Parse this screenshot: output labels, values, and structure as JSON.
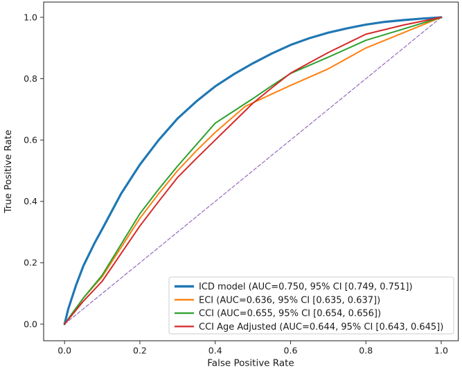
{
  "figure": {
    "background": "#ffffff",
    "spine_color": "#2e2e2e",
    "tick_color": "#2e2e2e",
    "text_color": "#1a1a1a",
    "legend_border_color": "#cccccc",
    "legend_background": "#ffffff"
  },
  "chart_data": {
    "type": "line",
    "title": "",
    "xlabel": "False Positive Rate",
    "ylabel": "True Positive Rate",
    "xlim": [
      0,
      1
    ],
    "ylim": [
      0,
      1
    ],
    "grid": false,
    "legend_position": "lower right",
    "x_ticks": [
      0.0,
      0.2,
      0.4,
      0.6,
      0.8,
      1.0
    ],
    "x_tick_labels": [
      "0.0",
      "0.2",
      "0.4",
      "0.6",
      "0.8",
      "1.0"
    ],
    "y_ticks": [
      0.0,
      0.2,
      0.4,
      0.6,
      0.8,
      1.0
    ],
    "y_tick_labels": [
      "0.0",
      "0.2",
      "0.4",
      "0.6",
      "0.8",
      "1.0"
    ],
    "series": [
      {
        "name": "chance-diagonal",
        "in_legend": false,
        "color": "#9467bd",
        "linewidth": 1.2,
        "dash": "5,3",
        "points": [
          [
            0,
            0
          ],
          [
            1,
            1
          ]
        ]
      },
      {
        "name": "ICD model (AUC=0.750, 95% CI [0.749, 0.751])",
        "in_legend": true,
        "color": "#1f77b4",
        "linewidth": 3.2,
        "dash": null,
        "points": [
          [
            0,
            0
          ],
          [
            0.01,
            0.05
          ],
          [
            0.03,
            0.125
          ],
          [
            0.05,
            0.19
          ],
          [
            0.08,
            0.265
          ],
          [
            0.1,
            0.31
          ],
          [
            0.15,
            0.425
          ],
          [
            0.2,
            0.52
          ],
          [
            0.25,
            0.6
          ],
          [
            0.3,
            0.67
          ],
          [
            0.35,
            0.726
          ],
          [
            0.4,
            0.775
          ],
          [
            0.45,
            0.815
          ],
          [
            0.5,
            0.85
          ],
          [
            0.55,
            0.882
          ],
          [
            0.6,
            0.91
          ],
          [
            0.65,
            0.932
          ],
          [
            0.7,
            0.95
          ],
          [
            0.75,
            0.964
          ],
          [
            0.8,
            0.976
          ],
          [
            0.85,
            0.985
          ],
          [
            0.9,
            0.991
          ],
          [
            0.95,
            0.996
          ],
          [
            1,
            1
          ]
        ]
      },
      {
        "name": "ECI (AUC=0.636, 95% CI [0.635, 0.637])",
        "in_legend": true,
        "color": "#ff7f0e",
        "linewidth": 2,
        "dash": null,
        "points": [
          [
            0,
            0
          ],
          [
            0.02,
            0.03
          ],
          [
            0.05,
            0.085
          ],
          [
            0.1,
            0.155
          ],
          [
            0.15,
            0.25
          ],
          [
            0.2,
            0.345
          ],
          [
            0.25,
            0.425
          ],
          [
            0.3,
            0.5
          ],
          [
            0.35,
            0.565
          ],
          [
            0.4,
            0.625
          ],
          [
            0.48,
            0.71
          ],
          [
            0.55,
            0.75
          ],
          [
            0.6,
            0.778
          ],
          [
            0.7,
            0.832
          ],
          [
            0.8,
            0.9
          ],
          [
            0.9,
            0.95
          ],
          [
            1,
            1
          ]
        ]
      },
      {
        "name": "CCI (AUC=0.655, 95% CI [0.654, 0.656])",
        "in_legend": true,
        "color": "#2ca02c",
        "linewidth": 2,
        "dash": null,
        "points": [
          [
            0,
            0
          ],
          [
            0.02,
            0.035
          ],
          [
            0.05,
            0.085
          ],
          [
            0.1,
            0.16
          ],
          [
            0.15,
            0.26
          ],
          [
            0.2,
            0.36
          ],
          [
            0.25,
            0.44
          ],
          [
            0.3,
            0.515
          ],
          [
            0.35,
            0.585
          ],
          [
            0.4,
            0.655
          ],
          [
            0.45,
            0.695
          ],
          [
            0.5,
            0.735
          ],
          [
            0.55,
            0.777
          ],
          [
            0.6,
            0.817
          ],
          [
            0.7,
            0.87
          ],
          [
            0.8,
            0.925
          ],
          [
            0.9,
            0.962
          ],
          [
            1,
            1
          ]
        ]
      },
      {
        "name": "CCI Age Adjusted (AUC=0.644, 95% CI [0.643, 0.645])",
        "in_legend": true,
        "color": "#d62728",
        "linewidth": 2,
        "dash": null,
        "points": [
          [
            0,
            0
          ],
          [
            0.02,
            0.03
          ],
          [
            0.05,
            0.075
          ],
          [
            0.1,
            0.14
          ],
          [
            0.15,
            0.23
          ],
          [
            0.2,
            0.32
          ],
          [
            0.25,
            0.4
          ],
          [
            0.3,
            0.478
          ],
          [
            0.35,
            0.54
          ],
          [
            0.4,
            0.6
          ],
          [
            0.45,
            0.66
          ],
          [
            0.5,
            0.72
          ],
          [
            0.55,
            0.77
          ],
          [
            0.6,
            0.818
          ],
          [
            0.65,
            0.852
          ],
          [
            0.7,
            0.885
          ],
          [
            0.8,
            0.945
          ],
          [
            0.9,
            0.975
          ],
          [
            1,
            1
          ]
        ]
      }
    ]
  }
}
